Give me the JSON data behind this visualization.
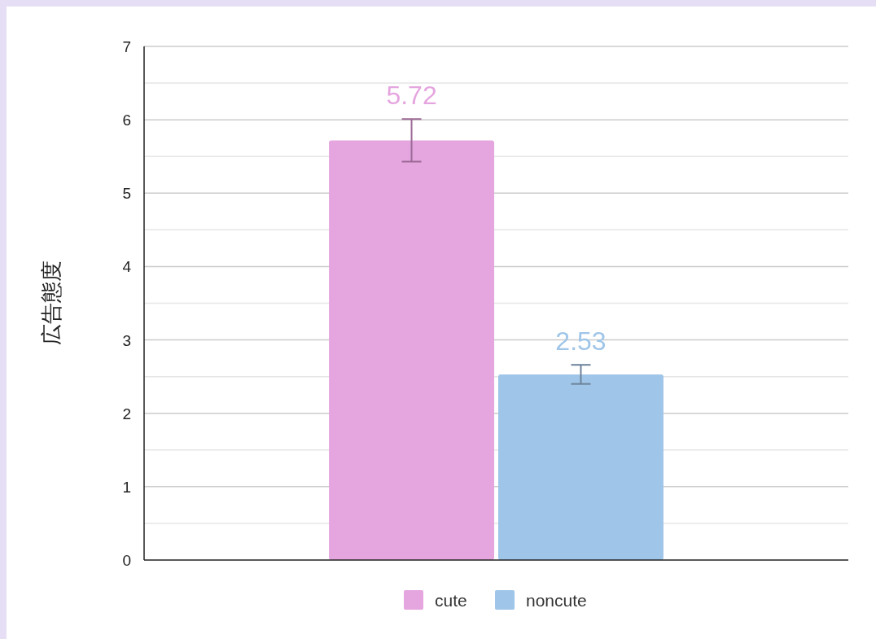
{
  "chart_data": {
    "type": "bar",
    "ylabel": "広告態度",
    "categories": [
      null
    ],
    "series": [
      {
        "name": "cute",
        "color": "#e5a6df",
        "values": [
          5.72
        ],
        "errors": [
          0.29
        ]
      },
      {
        "name": "noncute",
        "color": "#9fc5e8",
        "values": [
          2.53
        ],
        "errors": [
          0.13
        ]
      }
    ],
    "ylim": [
      0,
      7
    ],
    "yticks": [
      0,
      {
        "value": 0.5,
        "label": null
      },
      1,
      {
        "value": 1.5,
        "label": null
      },
      2,
      {
        "value": 2.5,
        "label": null
      },
      3,
      {
        "value": 3.5,
        "label": null
      },
      4,
      {
        "value": 4.5,
        "label": null
      },
      5,
      {
        "value": 5.5,
        "label": null
      },
      6,
      {
        "value": 6.5,
        "label": null
      },
      7
    ],
    "grid": "y",
    "legend": "bottom",
    "data_labels": true
  }
}
